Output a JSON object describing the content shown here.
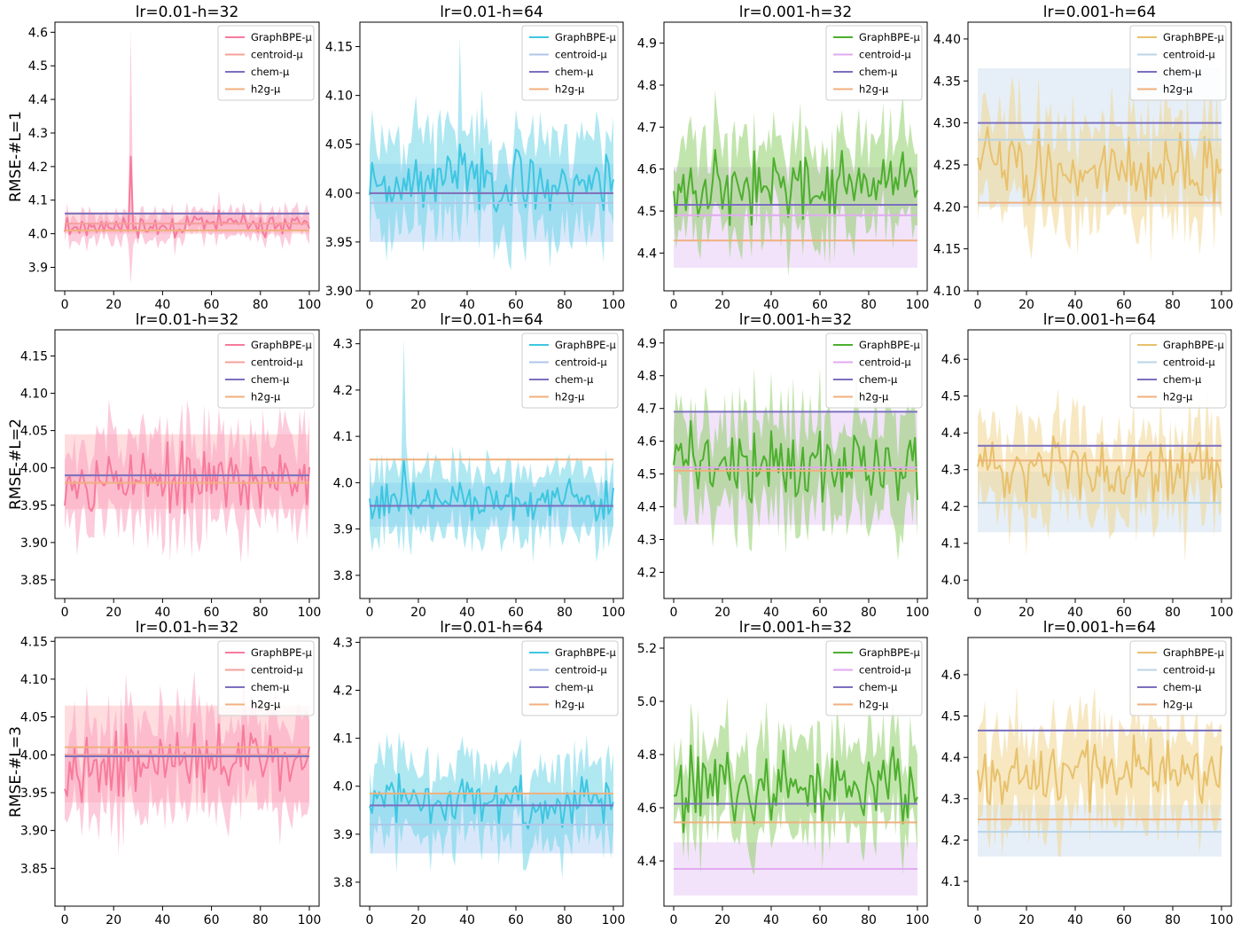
{
  "figure": {
    "row_labels": [
      "RMSE-#L=1",
      "RMSE-#L=2",
      "RMSE-#L=3"
    ],
    "col_titles": [
      "lr=0.01-h=32",
      "lr=0.01-h=64",
      "lr=0.001-h=32",
      "lr=0.001-h=64"
    ]
  },
  "colors": {
    "graphbpe": [
      "#f77b9b",
      "#3ec6e1",
      "#4daf2e",
      "#e8c16c"
    ],
    "graphbpe_band": [
      "#f9a0c0",
      "#6fd5e8",
      "#8fd06a",
      "#f0d590"
    ],
    "centroid": [
      "#f5a09a",
      "#aec7e8",
      "#e0aaf0",
      "#b8d4e8"
    ],
    "centroid_band": [
      "#ffb3b8",
      "#a8cdf4",
      "#e2c2f4",
      "#c8dcee"
    ],
    "chem": "#7b6fbf",
    "h2g": "#f0b07e"
  },
  "chart_data": [
    {
      "type": "line",
      "row": 0,
      "col": 0,
      "title": "lr=0.01-h=32",
      "ylabel": "RMSE-#L=1",
      "xlim": [
        -4,
        104
      ],
      "ylim": [
        3.83,
        4.63
      ],
      "yticks": [
        3.9,
        4.0,
        4.1,
        4.2,
        4.3,
        4.4,
        4.5,
        4.6
      ],
      "yfmt": 1,
      "xticks": [
        0,
        20,
        40,
        60,
        80,
        100
      ],
      "legend": [
        "GraphBPE-μ",
        "centroid-μ",
        "chem-μ",
        "h2g-μ"
      ],
      "centroid": {
        "mu": 4.03,
        "lo": 4.0,
        "hi": 4.065
      },
      "chem": 4.06,
      "h2g": 4.01,
      "graphbpe": {
        "base": 4.025,
        "amp": 0.022,
        "band": 0.04,
        "spikes": [
          [
            27,
            4.23,
            4.61,
            3.85
          ],
          [
            63,
            4.07,
            4.13,
            4.0
          ]
        ],
        "seed": 11
      }
    },
    {
      "type": "line",
      "row": 0,
      "col": 1,
      "title": "lr=0.01-h=64",
      "ylabel": "",
      "xlim": [
        -4,
        104
      ],
      "ylim": [
        3.9,
        4.175
      ],
      "yticks": [
        3.9,
        3.95,
        4.0,
        4.05,
        4.1,
        4.15
      ],
      "yfmt": 2,
      "xticks": [
        0,
        20,
        40,
        60,
        80,
        100
      ],
      "legend": [
        "GraphBPE-μ",
        "centroid-μ",
        "chem-μ",
        "h2g-μ"
      ],
      "centroid": {
        "mu": 3.99,
        "lo": 3.95,
        "hi": 4.03
      },
      "chem": 4.0,
      "h2g": 4.0,
      "graphbpe": {
        "base": 4.012,
        "amp": 0.02,
        "band": 0.05,
        "spikes": [
          [
            37,
            4.05,
            4.16,
            3.95
          ]
        ],
        "seed": 23
      }
    },
    {
      "type": "line",
      "row": 0,
      "col": 2,
      "title": "lr=0.001-h=32",
      "ylabel": "",
      "xlim": [
        -4,
        104
      ],
      "ylim": [
        4.31,
        4.95
      ],
      "yticks": [
        4.4,
        4.5,
        4.6,
        4.7,
        4.8,
        4.9
      ],
      "yfmt": 1,
      "xticks": [
        0,
        20,
        40,
        60,
        80,
        100
      ],
      "legend": [
        "GraphBPE-μ",
        "centroid-μ",
        "chem-μ",
        "h2g-μ"
      ],
      "centroid": {
        "mu": 4.49,
        "lo": 4.365,
        "hi": 4.605
      },
      "chem": 4.515,
      "h2g": 4.43,
      "graphbpe": {
        "base": 4.56,
        "amp": 0.06,
        "band": 0.11,
        "spikes": [],
        "seed": 37
      }
    },
    {
      "type": "line",
      "row": 0,
      "col": 3,
      "title": "lr=0.001-h=64",
      "ylabel": "",
      "xlim": [
        -4,
        104
      ],
      "ylim": [
        4.1,
        4.42
      ],
      "yticks": [
        4.1,
        4.15,
        4.2,
        4.25,
        4.3,
        4.35,
        4.4
      ],
      "yfmt": 2,
      "xticks": [
        0,
        20,
        40,
        60,
        80,
        100
      ],
      "legend": [
        "GraphBPE-μ",
        "centroid-μ",
        "chem-μ",
        "h2g-μ"
      ],
      "centroid": {
        "mu": 4.28,
        "lo": 4.2,
        "hi": 4.365
      },
      "chem": 4.3,
      "h2g": 4.205,
      "graphbpe": {
        "base": 4.245,
        "amp": 0.03,
        "band": 0.06,
        "spikes": [],
        "seed": 41
      }
    },
    {
      "type": "line",
      "row": 1,
      "col": 0,
      "title": "lr=0.01-h=32",
      "ylabel": "RMSE-#L=2",
      "xlim": [
        -4,
        104
      ],
      "ylim": [
        3.825,
        4.185
      ],
      "yticks": [
        3.85,
        3.9,
        3.95,
        4.0,
        4.05,
        4.1,
        4.15
      ],
      "yfmt": 2,
      "xticks": [
        0,
        20,
        40,
        60,
        80,
        100
      ],
      "legend": [
        "GraphBPE-μ",
        "centroid-μ",
        "chem-μ",
        "h2g-μ"
      ],
      "centroid": {
        "mu": 3.99,
        "lo": 3.945,
        "hi": 4.045
      },
      "chem": 3.99,
      "h2g": 3.98,
      "graphbpe": {
        "base": 3.985,
        "amp": 0.03,
        "band": 0.06,
        "spikes": [],
        "seed": 53
      }
    },
    {
      "type": "line",
      "row": 1,
      "col": 1,
      "title": "lr=0.01-h=64",
      "ylabel": "",
      "xlim": [
        -4,
        104
      ],
      "ylim": [
        3.75,
        4.33
      ],
      "yticks": [
        3.8,
        3.9,
        4.0,
        4.1,
        4.2,
        4.3
      ],
      "yfmt": 1,
      "xticks": [
        0,
        20,
        40,
        60,
        80,
        100
      ],
      "legend": [
        "GraphBPE-μ",
        "centroid-μ",
        "chem-μ",
        "h2g-μ"
      ],
      "centroid": {
        "mu": 3.95,
        "lo": 3.905,
        "hi": 4.0
      },
      "chem": 3.95,
      "h2g": 4.05,
      "graphbpe": {
        "base": 3.962,
        "amp": 0.03,
        "band": 0.07,
        "spikes": [
          [
            14,
            4.05,
            4.31,
            3.85
          ]
        ],
        "seed": 61
      }
    },
    {
      "type": "line",
      "row": 1,
      "col": 2,
      "title": "lr=0.001-h=32",
      "ylabel": "",
      "xlim": [
        -4,
        104
      ],
      "ylim": [
        4.12,
        4.94
      ],
      "yticks": [
        4.2,
        4.3,
        4.4,
        4.5,
        4.6,
        4.7,
        4.8,
        4.9
      ],
      "yfmt": 1,
      "xticks": [
        0,
        20,
        40,
        60,
        80,
        100
      ],
      "legend": [
        "GraphBPE-μ",
        "centroid-μ",
        "chem-μ",
        "h2g-μ"
      ],
      "centroid": {
        "mu": 4.52,
        "lo": 4.345,
        "hi": 4.69
      },
      "chem": 4.69,
      "h2g": 4.51,
      "graphbpe": {
        "base": 4.53,
        "amp": 0.08,
        "band": 0.15,
        "spikes": [],
        "seed": 71
      }
    },
    {
      "type": "line",
      "row": 1,
      "col": 3,
      "title": "lr=0.001-h=64",
      "ylabel": "",
      "xlim": [
        -4,
        104
      ],
      "ylim": [
        3.95,
        4.68
      ],
      "yticks": [
        4.0,
        4.1,
        4.2,
        4.3,
        4.4,
        4.5,
        4.6
      ],
      "yfmt": 1,
      "xticks": [
        0,
        20,
        40,
        60,
        80,
        100
      ],
      "legend": [
        "GraphBPE-μ",
        "centroid-μ",
        "chem-μ",
        "h2g-μ"
      ],
      "centroid": {
        "mu": 4.21,
        "lo": 4.13,
        "hi": 4.295
      },
      "chem": 4.365,
      "h2g": 4.325,
      "graphbpe": {
        "base": 4.3,
        "amp": 0.06,
        "band": 0.12,
        "spikes": [],
        "seed": 83
      }
    },
    {
      "type": "line",
      "row": 2,
      "col": 0,
      "title": "lr=0.01-h=32",
      "ylabel": "RMSE-#L=3",
      "xlim": [
        -4,
        104
      ],
      "ylim": [
        3.8,
        4.155
      ],
      "yticks": [
        3.85,
        3.9,
        3.95,
        4.0,
        4.05,
        4.1,
        4.15
      ],
      "yfmt": 2,
      "xticks": [
        0,
        20,
        40,
        60,
        80,
        100
      ],
      "legend": [
        "GraphBPE-μ",
        "centroid-μ",
        "chem-μ",
        "h2g-μ"
      ],
      "centroid": {
        "mu": 4.0,
        "lo": 3.937,
        "hi": 4.065
      },
      "chem": 3.998,
      "h2g": 4.01,
      "graphbpe": {
        "base": 3.99,
        "amp": 0.03,
        "band": 0.06,
        "spikes": [],
        "seed": 97
      }
    },
    {
      "type": "line",
      "row": 2,
      "col": 1,
      "title": "lr=0.01-h=64",
      "ylabel": "",
      "xlim": [
        -4,
        104
      ],
      "ylim": [
        3.75,
        4.31
      ],
      "yticks": [
        3.8,
        3.9,
        4.0,
        4.1,
        4.2,
        4.3
      ],
      "yfmt": 1,
      "xticks": [
        0,
        20,
        40,
        60,
        80,
        100
      ],
      "legend": [
        "GraphBPE-μ",
        "centroid-μ",
        "chem-μ",
        "h2g-μ"
      ],
      "centroid": {
        "mu": 3.92,
        "lo": 3.86,
        "hi": 3.985
      },
      "chem": 3.96,
      "h2g": 3.985,
      "graphbpe": {
        "base": 3.965,
        "amp": 0.035,
        "band": 0.08,
        "spikes": [],
        "seed": 103
      }
    },
    {
      "type": "line",
      "row": 2,
      "col": 2,
      "title": "lr=0.001-h=32",
      "ylabel": "",
      "xlim": [
        -4,
        104
      ],
      "ylim": [
        4.23,
        5.24
      ],
      "yticks": [
        4.4,
        4.6,
        4.8,
        5.0,
        5.2
      ],
      "yfmt": 1,
      "xticks": [
        0,
        20,
        40,
        60,
        80,
        100
      ],
      "legend": [
        "GraphBPE-μ",
        "centroid-μ",
        "chem-μ",
        "h2g-μ"
      ],
      "centroid": {
        "mu": 4.37,
        "lo": 4.27,
        "hi": 4.47
      },
      "chem": 4.615,
      "h2g": 4.545,
      "graphbpe": {
        "base": 4.68,
        "amp": 0.1,
        "band": 0.17,
        "spikes": [],
        "seed": 113
      }
    },
    {
      "type": "line",
      "row": 2,
      "col": 3,
      "title": "lr=0.001-h=64",
      "ylabel": "",
      "xlim": [
        -4,
        104
      ],
      "ylim": [
        4.04,
        4.69
      ],
      "yticks": [
        4.1,
        4.2,
        4.3,
        4.4,
        4.5,
        4.6
      ],
      "yfmt": 1,
      "xticks": [
        0,
        20,
        40,
        60,
        80,
        100
      ],
      "legend": [
        "GraphBPE-μ",
        "centroid-μ",
        "chem-μ",
        "h2g-μ"
      ],
      "centroid": {
        "mu": 4.22,
        "lo": 4.16,
        "hi": 4.285
      },
      "chem": 4.465,
      "h2g": 4.25,
      "graphbpe": {
        "base": 4.36,
        "amp": 0.06,
        "band": 0.12,
        "spikes": [],
        "seed": 127
      }
    }
  ]
}
